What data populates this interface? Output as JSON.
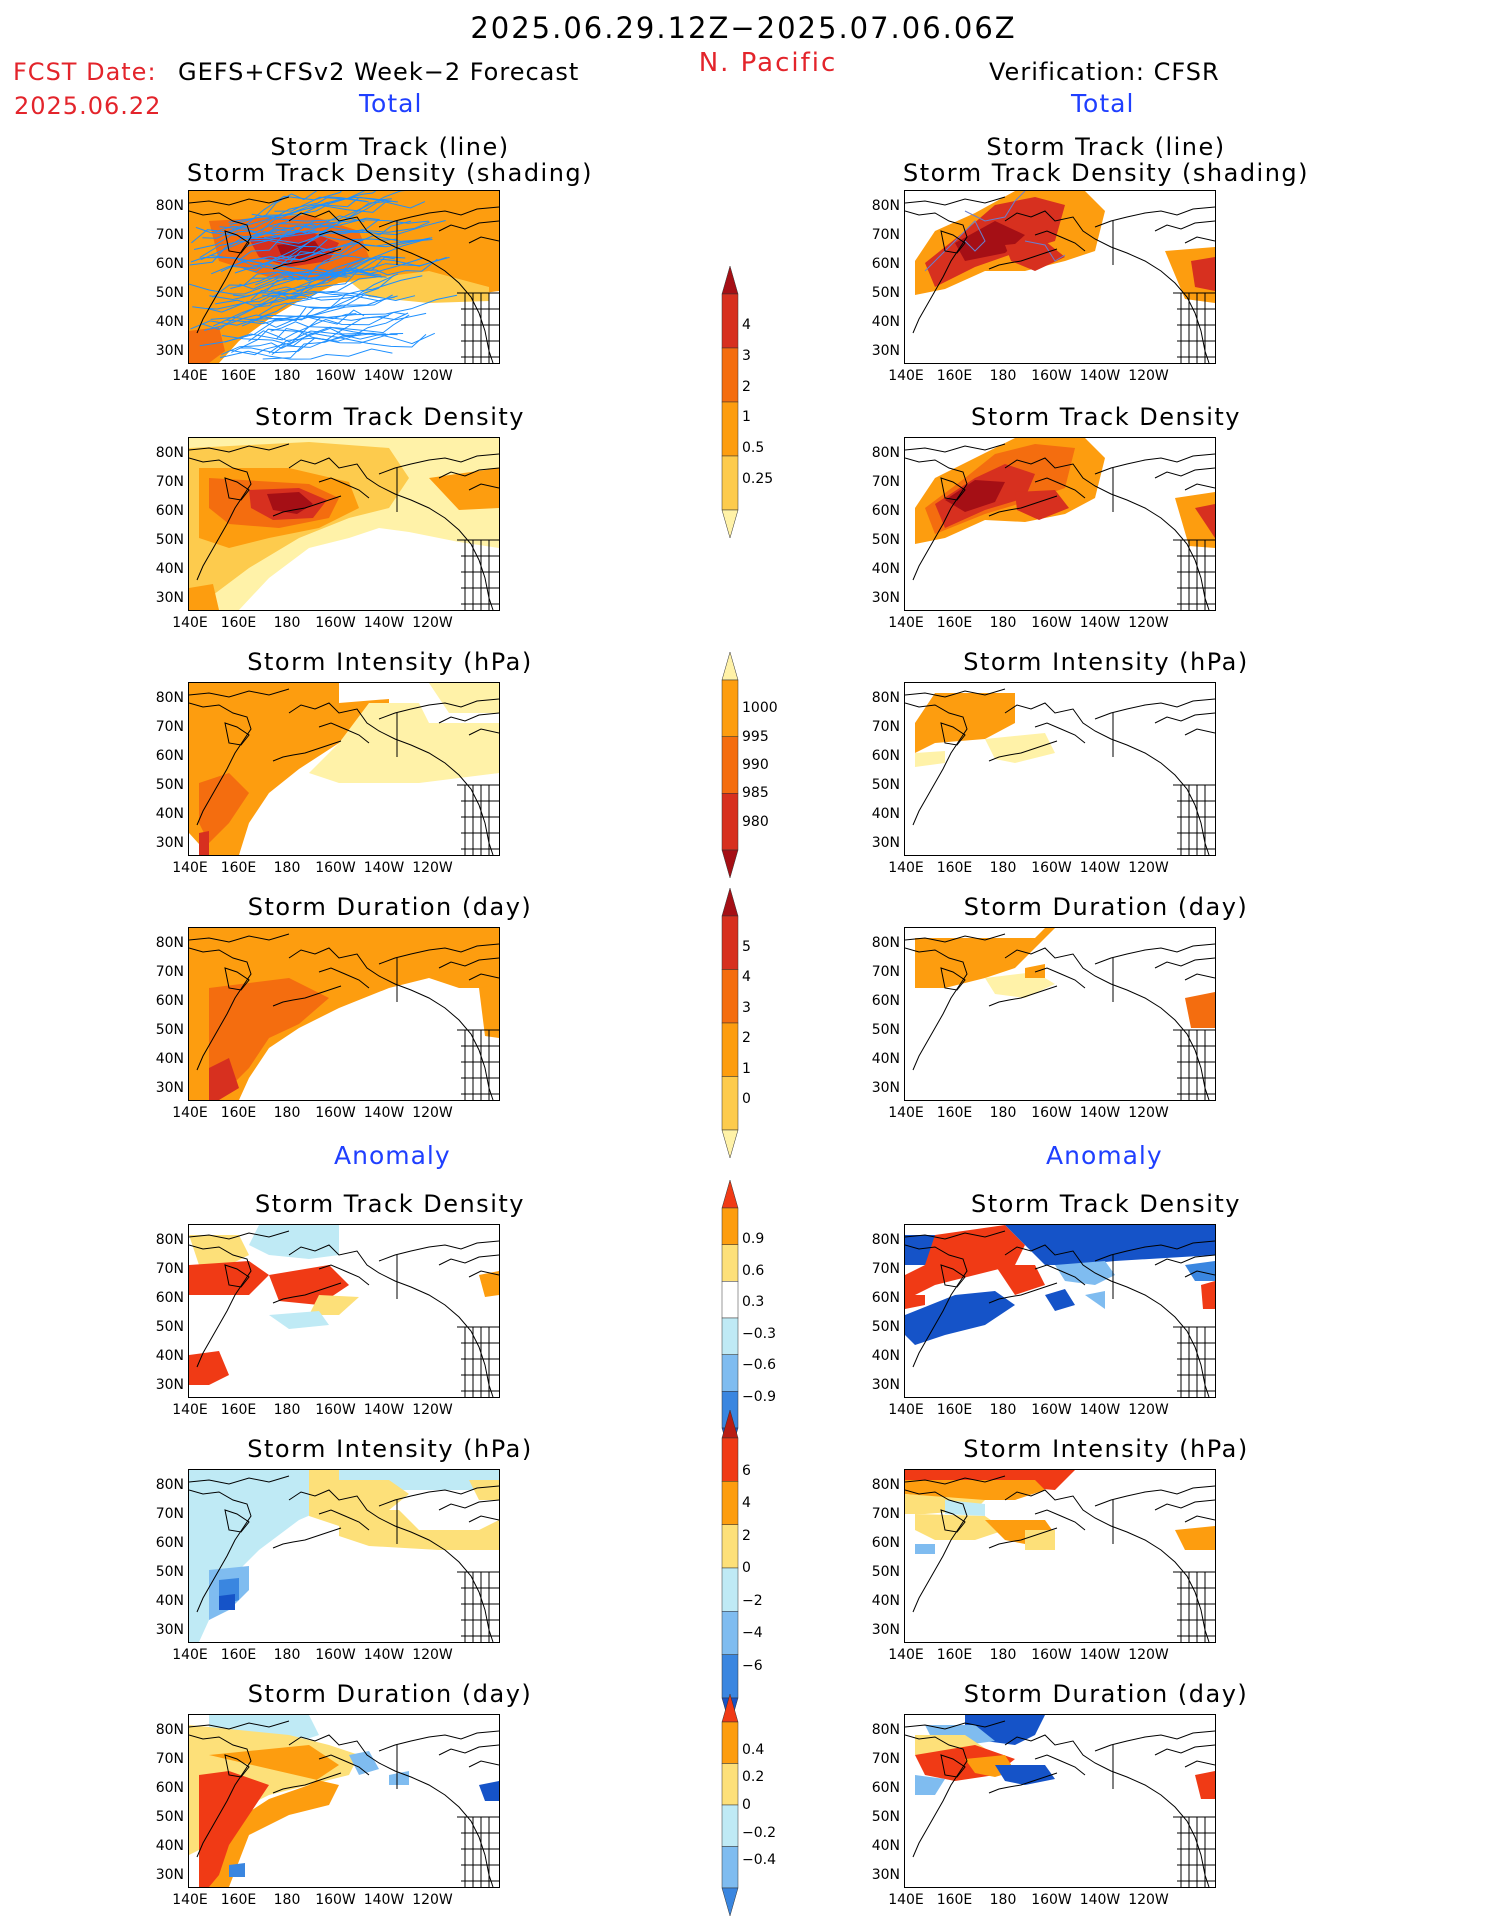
{
  "header": {
    "period": "2025.06.29.12Z−2025.07.06.06Z",
    "region": "N. Pacific",
    "fcst_label": "FCST Date:",
    "fcst_model": "GEFS+CFSv2 Week−2 Forecast",
    "fcst_date": "2025.06.22",
    "verification": "Verification: CFSR"
  },
  "sections": {
    "total": "Total",
    "anomaly": "Anomaly"
  },
  "panel_titles": {
    "track_line": "Storm Track (line)",
    "track_shading": "Storm Track Density (shading)",
    "density": "Storm Track Density",
    "intensity": "Storm Intensity (hPa)",
    "duration": "Storm Duration (day)"
  },
  "axes": {
    "lat_labels": [
      "80N",
      "70N",
      "60N",
      "50N",
      "40N",
      "30N"
    ],
    "lon_labels": [
      "140E",
      "160E",
      "180",
      "160W",
      "140W",
      "120W"
    ]
  },
  "colorbars": {
    "total_density": {
      "labels": [
        "4",
        "3",
        "2",
        "1",
        "0.5",
        "0.25"
      ],
      "colors": [
        "#a50f15",
        "#d7301f",
        "#f46d0f",
        "#fd9d0f",
        "#fdcb4d",
        "#fff2a8"
      ]
    },
    "total_intensity": {
      "labels": [
        "1000",
        "995",
        "990",
        "985",
        "980"
      ],
      "colors": [
        "#fff2a8",
        "#fd9d0f",
        "#f46d0f",
        "#d7301f",
        "#a50f15"
      ]
    },
    "total_duration": {
      "labels": [
        "5",
        "4",
        "3",
        "2",
        "1",
        "0"
      ],
      "colors": [
        "#a50f15",
        "#d7301f",
        "#f46d0f",
        "#fd9d0f",
        "#fdcb4d",
        "#fff2a8"
      ]
    },
    "anom_density": {
      "labels": [
        "0.9",
        "0.6",
        "0.3",
        "−0.3",
        "−0.6",
        "−0.9"
      ],
      "colors": [
        "#f03a15",
        "#fd9d0f",
        "#fde079",
        "#ffffff",
        "#bfeaf5",
        "#7fbcf0",
        "#3a86e0",
        "#1553c8"
      ]
    },
    "anom_intensity": {
      "labels": [
        "6",
        "4",
        "2",
        "0",
        "−2",
        "−4",
        "−6"
      ],
      "colors": [
        "#b81d13",
        "#f03a15",
        "#fd9d0f",
        "#fde079",
        "#bfeaf5",
        "#7fbcf0",
        "#3a86e0",
        "#1553c8"
      ]
    },
    "anom_duration": {
      "labels": [
        "0.4",
        "0.2",
        "0",
        "−0.2",
        "−0.4"
      ],
      "colors": [
        "#f03a15",
        "#fd9d0f",
        "#fde079",
        "#bfeaf5",
        "#7fbcf0",
        "#3a86e0"
      ]
    }
  },
  "colors": {
    "section_heading": "#1f3fff",
    "header_red": "#e3242b",
    "track_line": "#1e90ff"
  }
}
